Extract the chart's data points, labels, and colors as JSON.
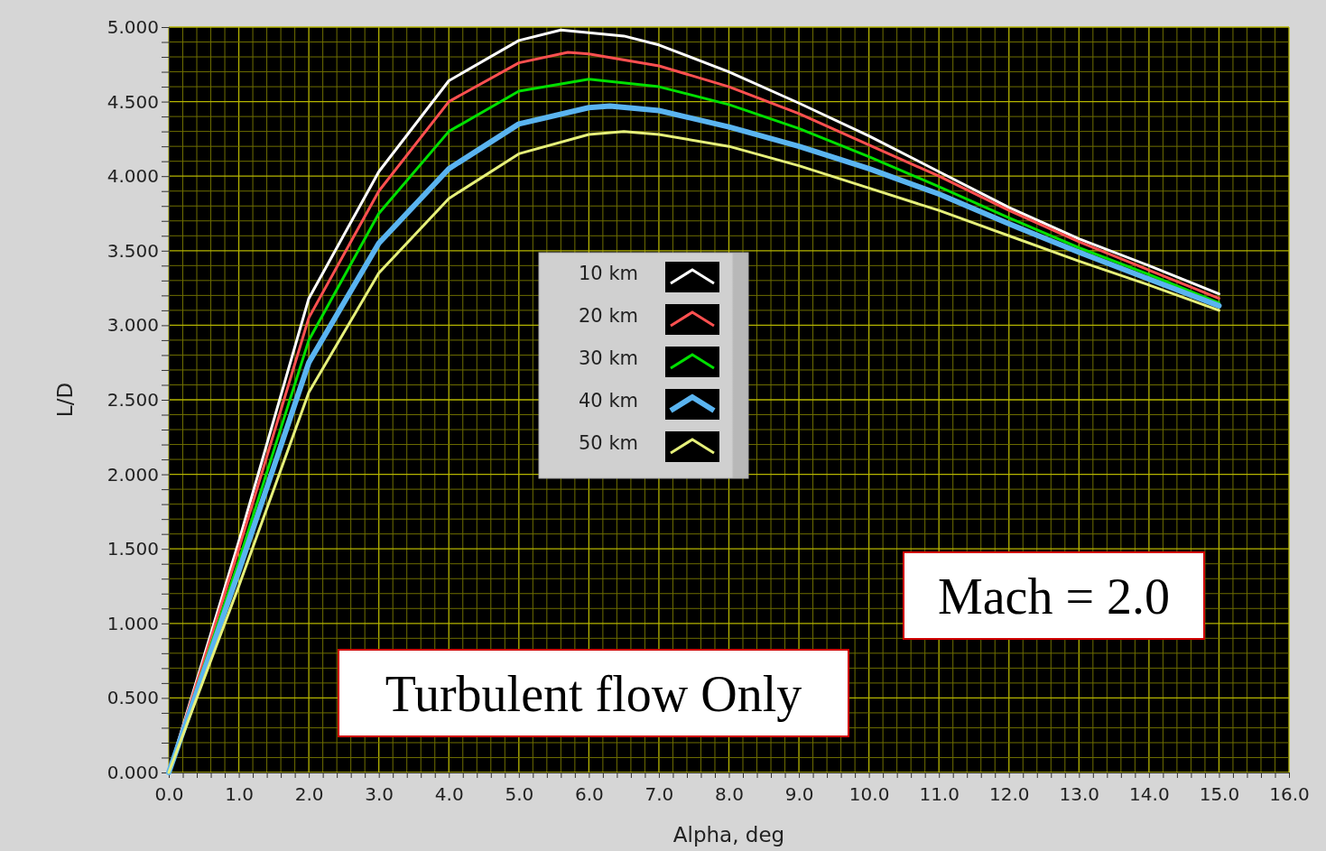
{
  "chart_data": {
    "type": "line",
    "xlabel": "Alpha, deg",
    "ylabel": "L/D",
    "xlim": [
      0,
      16
    ],
    "ylim": [
      0,
      5
    ],
    "xticks": [
      {
        "value": 0,
        "label": "0.0"
      },
      {
        "value": 1,
        "label": "1.0"
      },
      {
        "value": 2,
        "label": "2.0"
      },
      {
        "value": 3,
        "label": "3.0"
      },
      {
        "value": 4,
        "label": "4.0"
      },
      {
        "value": 5,
        "label": "5.0"
      },
      {
        "value": 6,
        "label": "6.0"
      },
      {
        "value": 7,
        "label": "7.0"
      },
      {
        "value": 8,
        "label": "8.0"
      },
      {
        "value": 9,
        "label": "9.0"
      },
      {
        "value": 10,
        "label": "10.0"
      },
      {
        "value": 11,
        "label": "11.0"
      },
      {
        "value": 12,
        "label": "12.0"
      },
      {
        "value": 13,
        "label": "13.0"
      },
      {
        "value": 14,
        "label": "14.0"
      },
      {
        "value": 15,
        "label": "15.0"
      },
      {
        "value": 16,
        "label": "16.0"
      },
      {
        "value": 0.2,
        "label": null
      },
      {
        "value": 0.4,
        "label": null
      },
      {
        "value": 0.6,
        "label": null
      },
      {
        "value": 0.8,
        "label": null
      },
      {
        "value": 1.2,
        "label": null
      },
      {
        "value": 1.4,
        "label": null
      },
      {
        "value": 1.6,
        "label": null
      },
      {
        "value": 1.8,
        "label": null
      },
      {
        "value": 2.2,
        "label": null
      },
      {
        "value": 2.4,
        "label": null
      },
      {
        "value": 2.6,
        "label": null
      },
      {
        "value": 2.8,
        "label": null
      },
      {
        "value": 3.2,
        "label": null
      },
      {
        "value": 3.4,
        "label": null
      },
      {
        "value": 3.6,
        "label": null
      },
      {
        "value": 3.8,
        "label": null
      },
      {
        "value": 4.2,
        "label": null
      },
      {
        "value": 4.4,
        "label": null
      },
      {
        "value": 4.6,
        "label": null
      },
      {
        "value": 4.8,
        "label": null
      },
      {
        "value": 5.2,
        "label": null
      },
      {
        "value": 5.4,
        "label": null
      },
      {
        "value": 5.6,
        "label": null
      },
      {
        "value": 5.8,
        "label": null
      },
      {
        "value": 6.2,
        "label": null
      },
      {
        "value": 6.4,
        "label": null
      },
      {
        "value": 6.6,
        "label": null
      },
      {
        "value": 6.8,
        "label": null
      },
      {
        "value": 7.2,
        "label": null
      },
      {
        "value": 7.4,
        "label": null
      },
      {
        "value": 7.6,
        "label": null
      },
      {
        "value": 7.8,
        "label": null
      },
      {
        "value": 8.2,
        "label": null
      },
      {
        "value": 8.4,
        "label": null
      },
      {
        "value": 8.6,
        "label": null
      },
      {
        "value": 8.8,
        "label": null
      },
      {
        "value": 9.2,
        "label": null
      },
      {
        "value": 9.4,
        "label": null
      },
      {
        "value": 9.6,
        "label": null
      },
      {
        "value": 9.8,
        "label": null
      },
      {
        "value": 10.2,
        "label": null
      },
      {
        "value": 10.4,
        "label": null
      },
      {
        "value": 10.6,
        "label": null
      },
      {
        "value": 10.8,
        "label": null
      },
      {
        "value": 11.2,
        "label": null
      },
      {
        "value": 11.4,
        "label": null
      },
      {
        "value": 11.6,
        "label": null
      },
      {
        "value": 11.8,
        "label": null
      },
      {
        "value": 12.2,
        "label": null
      },
      {
        "value": 12.4,
        "label": null
      },
      {
        "value": 12.6,
        "label": null
      },
      {
        "value": 12.8,
        "label": null
      },
      {
        "value": 13.2,
        "label": null
      },
      {
        "value": 13.4,
        "label": null
      },
      {
        "value": 13.6,
        "label": null
      },
      {
        "value": 13.8,
        "label": null
      },
      {
        "value": 14.2,
        "label": null
      },
      {
        "value": 14.4,
        "label": null
      },
      {
        "value": 14.6,
        "label": null
      },
      {
        "value": 14.8,
        "label": null
      },
      {
        "value": 15.2,
        "label": null
      },
      {
        "value": 15.4,
        "label": null
      },
      {
        "value": 15.6,
        "label": null
      },
      {
        "value": 15.8,
        "label": null
      }
    ],
    "yticks": [
      {
        "value": 0,
        "label": "0.000"
      },
      {
        "value": 0.5,
        "label": "0.500"
      },
      {
        "value": 1,
        "label": "1.000"
      },
      {
        "value": 1.5,
        "label": "1.500"
      },
      {
        "value": 2,
        "label": "2.000"
      },
      {
        "value": 2.5,
        "label": "2.500"
      },
      {
        "value": 3,
        "label": "3.000"
      },
      {
        "value": 3.5,
        "label": "3.500"
      },
      {
        "value": 4,
        "label": "4.000"
      },
      {
        "value": 4.5,
        "label": "4.500"
      },
      {
        "value": 5,
        "label": "5.000"
      },
      {
        "value": 0.1,
        "label": null
      },
      {
        "value": 0.2,
        "label": null
      },
      {
        "value": 0.3,
        "label": null
      },
      {
        "value": 0.4,
        "label": null
      },
      {
        "value": 0.6,
        "label": null
      },
      {
        "value": 0.7,
        "label": null
      },
      {
        "value": 0.8,
        "label": null
      },
      {
        "value": 0.9,
        "label": null
      },
      {
        "value": 1.1,
        "label": null
      },
      {
        "value": 1.2,
        "label": null
      },
      {
        "value": 1.3,
        "label": null
      },
      {
        "value": 1.4,
        "label": null
      },
      {
        "value": 1.6,
        "label": null
      },
      {
        "value": 1.7,
        "label": null
      },
      {
        "value": 1.8,
        "label": null
      },
      {
        "value": 1.9,
        "label": null
      },
      {
        "value": 2.1,
        "label": null
      },
      {
        "value": 2.2,
        "label": null
      },
      {
        "value": 2.3,
        "label": null
      },
      {
        "value": 2.4,
        "label": null
      },
      {
        "value": 2.6,
        "label": null
      },
      {
        "value": 2.7,
        "label": null
      },
      {
        "value": 2.8,
        "label": null
      },
      {
        "value": 2.9,
        "label": null
      },
      {
        "value": 3.1,
        "label": null
      },
      {
        "value": 3.2,
        "label": null
      },
      {
        "value": 3.3,
        "label": null
      },
      {
        "value": 3.4,
        "label": null
      },
      {
        "value": 3.6,
        "label": null
      },
      {
        "value": 3.7,
        "label": null
      },
      {
        "value": 3.8,
        "label": null
      },
      {
        "value": 3.9,
        "label": null
      },
      {
        "value": 4.1,
        "label": null
      },
      {
        "value": 4.2,
        "label": null
      },
      {
        "value": 4.3,
        "label": null
      },
      {
        "value": 4.4,
        "label": null
      },
      {
        "value": 4.6,
        "label": null
      },
      {
        "value": 4.7,
        "label": null
      },
      {
        "value": 4.8,
        "label": null
      },
      {
        "value": 4.9,
        "label": null
      }
    ],
    "x": [
      0,
      1,
      2,
      3,
      4,
      5,
      6,
      7,
      8,
      9,
      10,
      11,
      12,
      13,
      14,
      15
    ],
    "grid": true,
    "legend": "top",
    "marker": "none",
    "line_style": "solid",
    "series": [
      {
        "name": "10 km",
        "color": "#ffffff",
        "x": [
          0,
          1,
          2,
          3,
          4,
          5,
          5.6,
          6.5,
          7,
          8,
          9,
          10,
          11,
          12,
          13,
          14,
          15
        ],
        "values": [
          0,
          1.55,
          3.18,
          4.03,
          4.64,
          4.91,
          4.98,
          4.94,
          4.88,
          4.7,
          4.49,
          4.27,
          4.03,
          3.79,
          3.58,
          3.4,
          3.21
        ]
      },
      {
        "name": "20 km",
        "color": "#ff5050",
        "x": [
          0,
          1,
          2,
          3,
          4,
          5,
          5.7,
          6,
          7,
          8,
          9,
          10,
          11,
          12,
          13,
          14,
          15
        ],
        "values": [
          0,
          1.5,
          3.05,
          3.9,
          4.5,
          4.76,
          4.83,
          4.82,
          4.74,
          4.6,
          4.42,
          4.21,
          4,
          3.77,
          3.56,
          3.37,
          3.18
        ]
      },
      {
        "name": "30 km",
        "color": "#00e000",
        "values": [
          0,
          1.42,
          2.9,
          3.75,
          4.3,
          4.57,
          4.65,
          4.6,
          4.48,
          4.32,
          4.13,
          3.93,
          3.72,
          3.52,
          3.34,
          3.15
        ]
      },
      {
        "name": "40 km",
        "color": "#5ab4f0",
        "x": [
          0,
          1,
          2,
          3,
          4,
          5,
          6,
          6.3,
          7,
          8,
          9,
          10,
          11,
          12,
          13,
          14,
          15
        ],
        "values": [
          0,
          1.35,
          2.75,
          3.55,
          4.05,
          4.35,
          4.46,
          4.47,
          4.44,
          4.33,
          4.2,
          4.05,
          3.88,
          3.68,
          3.49,
          3.31,
          3.13
        ]
      },
      {
        "name": "50 km",
        "color": "#e6f07a",
        "x": [
          0,
          1,
          2,
          3,
          4,
          5,
          6,
          6.5,
          7,
          8,
          9,
          10,
          11,
          12,
          13,
          14,
          15
        ],
        "values": [
          0,
          1.25,
          2.55,
          3.35,
          3.85,
          4.15,
          4.28,
          4.3,
          4.28,
          4.2,
          4.07,
          3.92,
          3.77,
          3.6,
          3.43,
          3.27,
          3.1
        ]
      }
    ],
    "annotations": [
      {
        "text": "Mach = 2.0"
      },
      {
        "text": "Turbulent flow Only"
      }
    ]
  }
}
